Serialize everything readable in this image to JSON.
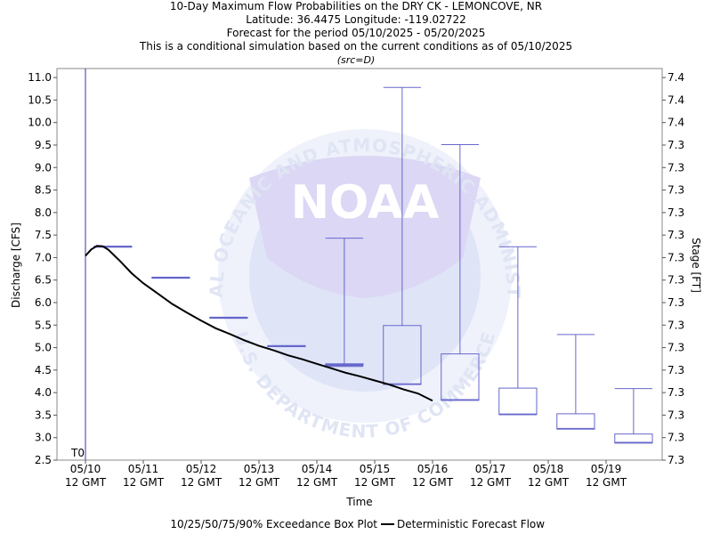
{
  "titles": {
    "line1": "10-Day Maximum Flow Probabilities on the DRY CK - LEMONCOVE, NR",
    "line2": "Latitude: 36.4475 Longitude: -119.02722",
    "line3": "Forecast for the period 05/10/2025 - 05/20/2025",
    "line4": "This is a conditional simulation based on the current conditions as of 05/10/2025",
    "line5": "(src=D)"
  },
  "chart_data": {
    "type": "box",
    "xlabel": "Time",
    "ylabel": "Discharge [CFS]",
    "y2label": "Stage [FT]",
    "ylim": [
      2.5,
      11.2
    ],
    "yticks": [
      "2.5",
      "3.0",
      "3.5",
      "4.0",
      "4.5",
      "5.0",
      "5.5",
      "6.0",
      "6.5",
      "7.0",
      "7.5",
      "8.0",
      "8.5",
      "9.0",
      "9.5",
      "10.0",
      "10.5",
      "11.0"
    ],
    "y2ticks": [
      "7.3",
      "7.3",
      "7.3",
      "7.3",
      "7.3",
      "7.3",
      "7.3",
      "7.3",
      "7.3",
      "7.3",
      "7.3",
      "7.3",
      "7.3",
      "7.3",
      "7.3",
      "7.4",
      "7.4",
      "7.4"
    ],
    "xlim_days": [
      0,
      10
    ],
    "xticks": [
      {
        "date": "05/10",
        "time": "12 GMT"
      },
      {
        "date": "05/11",
        "time": "12 GMT"
      },
      {
        "date": "05/12",
        "time": "12 GMT"
      },
      {
        "date": "05/13",
        "time": "12 GMT"
      },
      {
        "date": "05/14",
        "time": "12 GMT"
      },
      {
        "date": "05/15",
        "time": "12 GMT"
      },
      {
        "date": "05/16",
        "time": "12 GMT"
      },
      {
        "date": "05/17",
        "time": "12 GMT"
      },
      {
        "date": "05/18",
        "time": "12 GMT"
      },
      {
        "date": "05/19",
        "time": "12 GMT"
      }
    ],
    "t0_label": "T0",
    "boxes": [
      {
        "day": "05/10-05/11",
        "p10": 7.25,
        "p25": 7.25,
        "p50": 7.25,
        "p75": 7.25,
        "p90": 7.25
      },
      {
        "day": "05/11-05/12",
        "p10": 6.56,
        "p25": 6.56,
        "p50": 6.56,
        "p75": 6.56,
        "p90": 6.56
      },
      {
        "day": "05/12-05/13",
        "p10": 5.67,
        "p25": 5.67,
        "p50": 5.67,
        "p75": 5.67,
        "p90": 5.67
      },
      {
        "day": "05/13-05/14",
        "p10": 5.04,
        "p25": 5.04,
        "p50": 5.04,
        "p75": 5.04,
        "p90": 5.04
      },
      {
        "day": "05/14-05/15",
        "p10": 4.58,
        "p25": 4.6,
        "p50": 4.62,
        "p75": 4.64,
        "p90": 7.43
      },
      {
        "day": "05/15-05/16",
        "p10": 4.18,
        "p25": 4.18,
        "p50": 4.19,
        "p75": 5.49,
        "p90": 10.78
      },
      {
        "day": "05/16-05/17",
        "p10": 3.83,
        "p25": 3.83,
        "p50": 3.84,
        "p75": 4.86,
        "p90": 9.51
      },
      {
        "day": "05/17-05/18",
        "p10": 3.51,
        "p25": 3.51,
        "p50": 3.52,
        "p75": 4.1,
        "p90": 7.24
      },
      {
        "day": "05/18-05/19",
        "p10": 3.19,
        "p25": 3.19,
        "p50": 3.2,
        "p75": 3.53,
        "p90": 5.29
      },
      {
        "day": "05/19-05/20",
        "p10": 2.88,
        "p25": 2.88,
        "p50": 2.89,
        "p75": 3.08,
        "p90": 4.09
      }
    ],
    "deterministic": {
      "x_days": [
        0.0,
        0.1,
        0.2,
        0.3,
        0.4,
        0.6,
        0.8,
        1.0,
        1.25,
        1.5,
        1.75,
        2.0,
        2.25,
        2.5,
        2.75,
        3.0,
        3.25,
        3.5,
        3.75,
        4.0,
        4.25,
        4.5,
        4.75,
        5.0,
        5.25,
        5.5,
        5.75,
        6.0
      ],
      "values": [
        7.04,
        7.18,
        7.26,
        7.25,
        7.17,
        6.92,
        6.65,
        6.43,
        6.2,
        5.97,
        5.78,
        5.6,
        5.43,
        5.3,
        5.16,
        5.04,
        4.94,
        4.83,
        4.74,
        4.64,
        4.54,
        4.44,
        4.36,
        4.27,
        4.18,
        4.07,
        3.98,
        3.82
      ]
    },
    "legend": {
      "box_label": "10/25/50/75/90% Exceedance Box Plot",
      "line_label": "Deterministic Forecast Flow",
      "placement": "bottom-center"
    },
    "watermark": {
      "text_top": "NATIONAL OCEANIC AND ATMOSPHERIC ADMINISTRATION",
      "text_bottom": "U.S. DEPARTMENT OF COMMERCE",
      "logo": "NOAA"
    },
    "colors": {
      "box": "#6666cc",
      "line": "#000000",
      "t0_line": "#3333aa",
      "watermark": "#dce3f7"
    }
  }
}
